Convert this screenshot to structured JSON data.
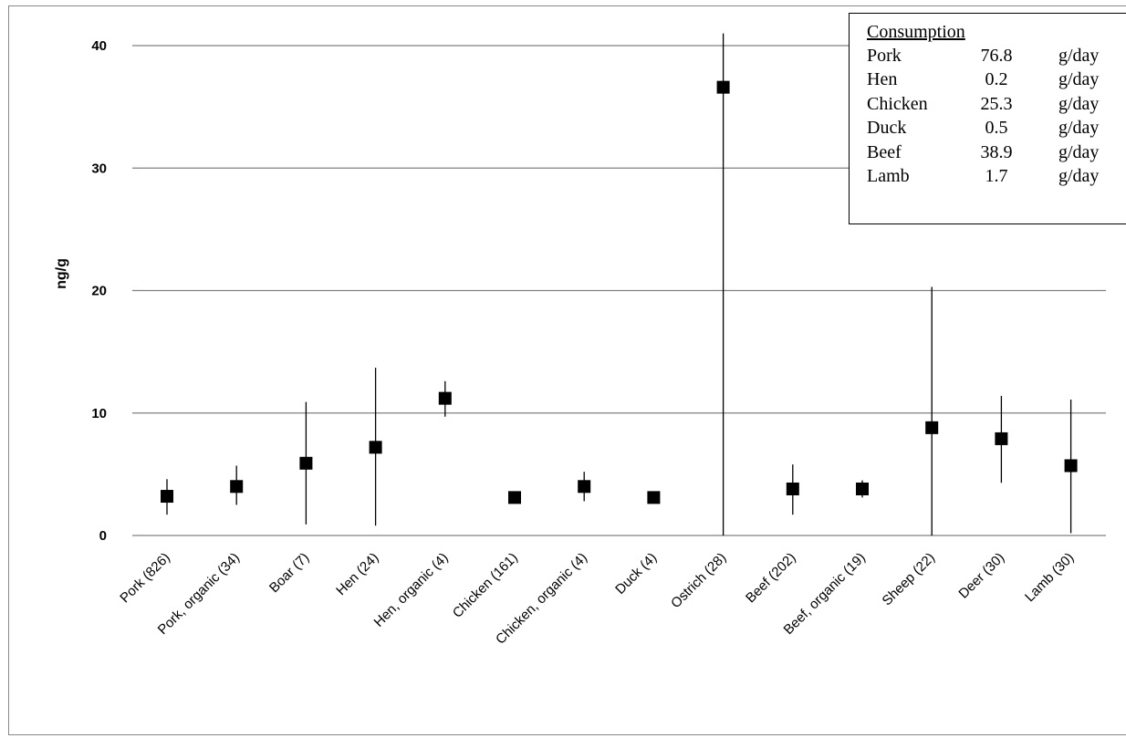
{
  "chart_data": {
    "type": "scatter",
    "title": "",
    "xlabel": "",
    "ylabel": "ng/g",
    "ylim": [
      0,
      40
    ],
    "yticks": [
      0,
      10,
      20,
      30,
      40
    ],
    "grid": true,
    "categories": [
      "Pork (826)",
      "Pork, organic (34)",
      "Boar (7)",
      "Hen (24)",
      "Hen, organic (4)",
      "Chicken (161)",
      "Chicken, organic (4)",
      "Duck (4)",
      "Ostrich (28)",
      "Beef (202)",
      "Beef, organic (19)",
      "Sheep (22)",
      "Deer (30)",
      "Lamb (30)"
    ],
    "values": [
      3.2,
      4.0,
      5.9,
      7.2,
      11.2,
      3.1,
      4.0,
      3.1,
      36.6,
      3.8,
      3.8,
      8.8,
      7.9,
      5.7
    ],
    "error_low": [
      1.7,
      2.5,
      0.9,
      0.8,
      9.7,
      null,
      2.8,
      null,
      0.0,
      1.7,
      3.1,
      0.0,
      4.3,
      0.2
    ],
    "error_high": [
      4.6,
      5.7,
      10.9,
      13.7,
      12.6,
      null,
      5.2,
      null,
      41.0,
      5.8,
      4.5,
      20.3,
      11.4,
      11.1
    ],
    "legend": {
      "title": "Consumption",
      "position": "top-right",
      "rows": [
        {
          "food": "Pork",
          "value": "76.8",
          "unit": "g/day"
        },
        {
          "food": "Hen",
          "value": "0.2",
          "unit": "g/day"
        },
        {
          "food": "Chicken",
          "value": "25.3",
          "unit": "g/day"
        },
        {
          "food": "Duck",
          "value": "0.5",
          "unit": "g/day"
        },
        {
          "food": "Beef",
          "value": "38.9",
          "unit": "g/day"
        },
        {
          "food": "Lamb",
          "value": "1.7",
          "unit": "g/day"
        }
      ]
    }
  }
}
